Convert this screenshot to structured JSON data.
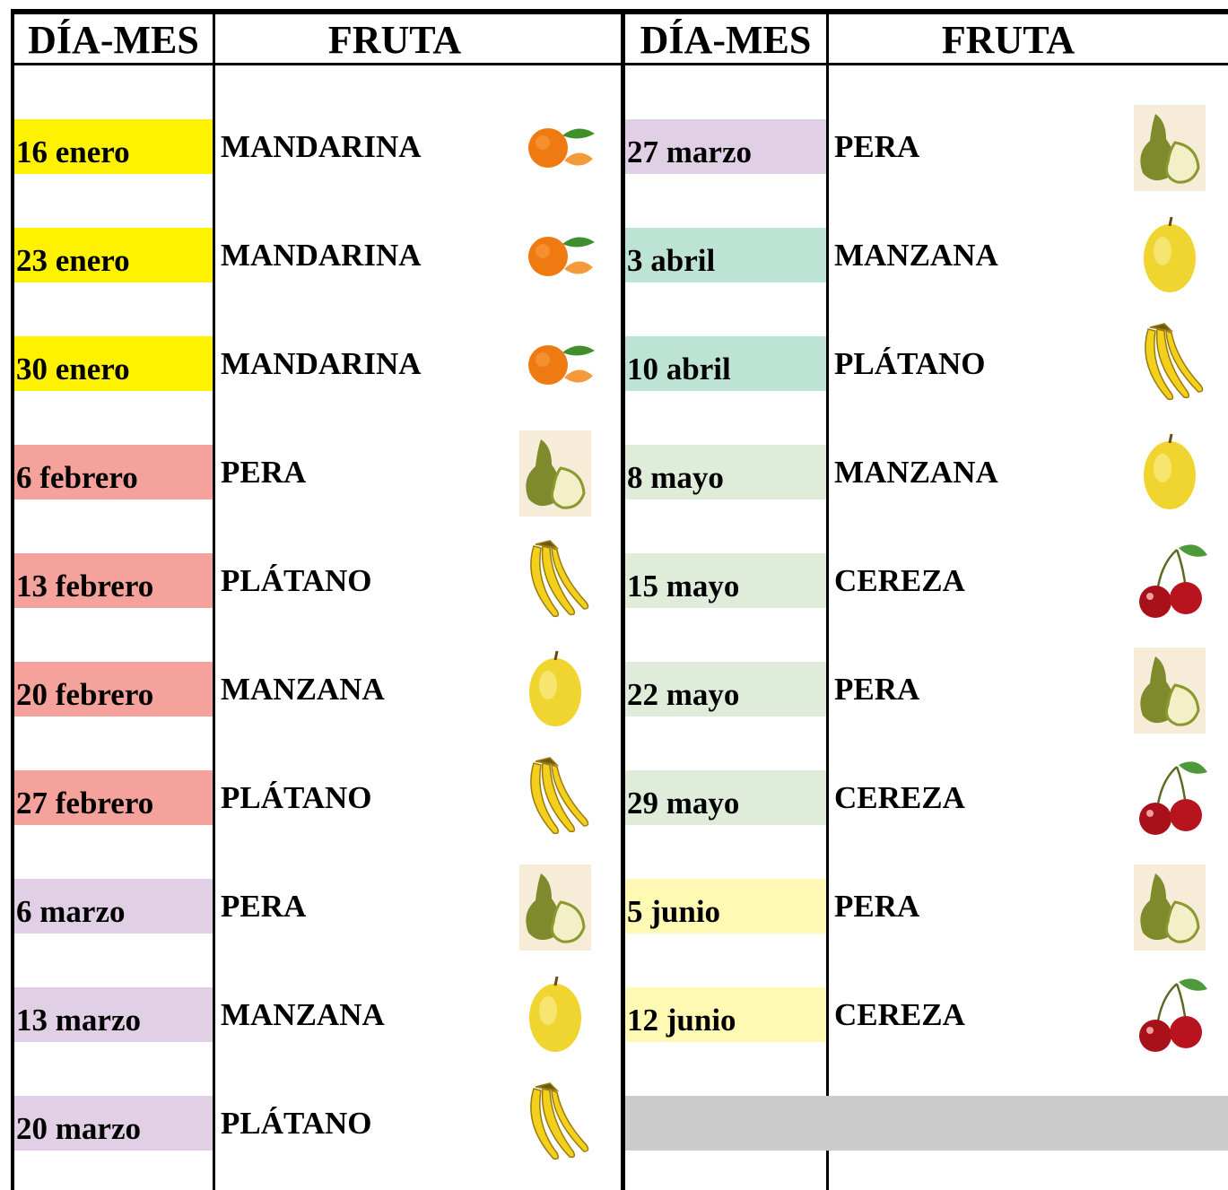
{
  "header": [
    "DÍA-MES",
    "FRUTA",
    "DÍA-MES",
    "FRUTA"
  ],
  "left_rows": [
    [
      "16 enero",
      "MANDARINA"
    ],
    [
      "23 enero",
      "MANDARINA"
    ],
    [
      "30 enero",
      "MANDARINA"
    ],
    [
      "6 febrero",
      "PERA"
    ],
    [
      "13 febrero",
      "PLÁTANO"
    ],
    [
      "20 febrero",
      "MANZANA"
    ],
    [
      "27 febrero",
      "PLÁTANO"
    ],
    [
      "6 marzo",
      "PERA"
    ],
    [
      "13 marzo",
      "MANZANA"
    ],
    [
      "20 marzo",
      "PLÁTANO"
    ]
  ],
  "right_rows": [
    [
      "27 marzo",
      "PERA"
    ],
    [
      "3 abril",
      "MANZANA"
    ],
    [
      "10 abril",
      "PLÁTANO"
    ],
    [
      "8 mayo",
      "MANZANA"
    ],
    [
      "15 mayo",
      "CEREZA"
    ],
    [
      "22 mayo",
      "PERA"
    ],
    [
      "29 mayo",
      "CEREZA"
    ],
    [
      "5 junio",
      "PERA"
    ],
    [
      "12 junio",
      "CEREZA"
    ]
  ]
}
